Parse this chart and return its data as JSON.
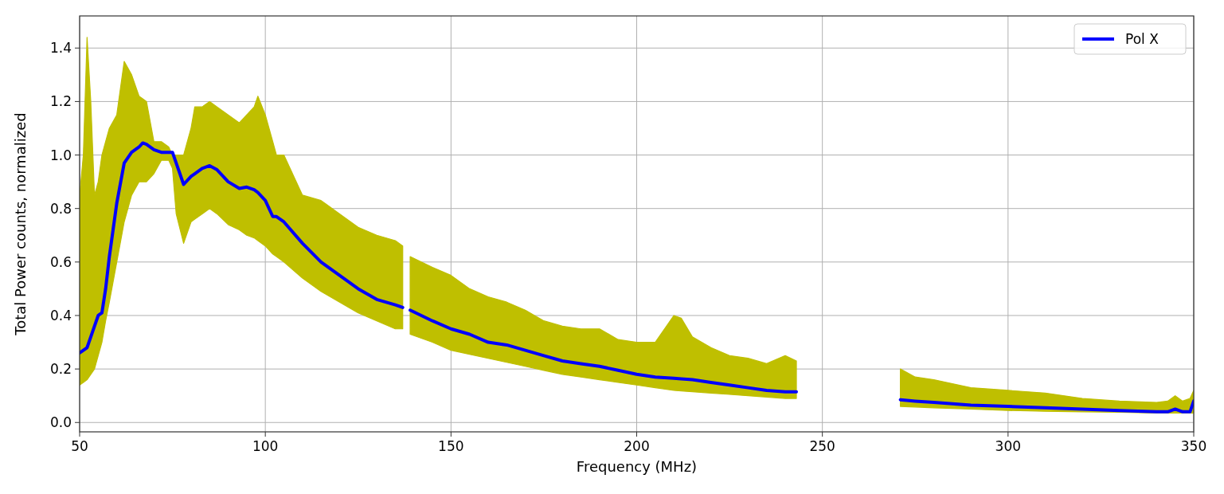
{
  "chart_data": {
    "type": "line",
    "xlabel": "Frequency (MHz)",
    "ylabel": "Total Power counts, normalized",
    "xlim": [
      50,
      350
    ],
    "xticks": [
      50,
      100,
      150,
      200,
      250,
      300,
      350
    ],
    "ylim": [
      -0.035,
      1.52
    ],
    "yticks": [
      {
        "value": 0,
        "label": "0.0"
      },
      0.2,
      0.4,
      0.6,
      0.8,
      {
        "value": 1,
        "label": "1.0"
      },
      1.2,
      1.4
    ],
    "grid": true,
    "legend": "top right",
    "x": [
      50,
      51,
      52,
      53,
      54,
      55,
      56,
      57,
      58,
      60,
      62,
      64,
      66,
      67,
      68,
      70,
      72,
      74,
      75,
      76,
      78,
      80,
      81,
      83,
      85,
      87,
      90,
      93,
      95,
      97,
      98,
      100,
      102,
      103,
      105,
      110,
      115,
      120,
      125,
      130,
      135,
      137,
      138,
      139,
      145,
      150,
      155,
      160,
      165,
      170,
      175,
      180,
      185,
      190,
      195,
      200,
      205,
      210,
      212,
      215,
      220,
      225,
      230,
      235,
      240,
      243,
      255,
      271,
      275,
      280,
      290,
      300,
      310,
      320,
      330,
      340,
      343,
      345,
      347,
      349,
      350
    ],
    "series": [
      {
        "name": "Pol X",
        "color": "#0000ff",
        "values": [
          0.26,
          0.27,
          0.28,
          0.32,
          0.36,
          0.4,
          0.41,
          0.5,
          0.62,
          0.82,
          0.97,
          1.01,
          1.03,
          1.045,
          1.04,
          1.02,
          1.01,
          1.01,
          1.01,
          0.97,
          0.89,
          0.92,
          0.93,
          0.95,
          0.96,
          0.945,
          0.9,
          0.875,
          0.88,
          0.87,
          0.86,
          0.83,
          0.77,
          0.77,
          0.75,
          0.67,
          0.6,
          0.55,
          0.5,
          0.46,
          0.44,
          0.43,
          null,
          0.42,
          0.38,
          0.35,
          0.33,
          0.3,
          0.29,
          0.27,
          0.25,
          0.23,
          0.22,
          0.21,
          0.195,
          0.18,
          0.17,
          0.165,
          0.163,
          0.16,
          0.15,
          0.14,
          0.13,
          0.12,
          0.115,
          0.115,
          null,
          0.085,
          0.08,
          0.075,
          0.065,
          0.06,
          0.055,
          0.05,
          0.045,
          0.04,
          0.04,
          0.05,
          0.04,
          0.04,
          0.08
        ],
        "lower": [
          0.14,
          0.15,
          0.16,
          0.18,
          0.2,
          0.25,
          0.3,
          0.38,
          0.45,
          0.6,
          0.75,
          0.85,
          0.9,
          0.9,
          0.9,
          0.93,
          0.98,
          0.98,
          0.95,
          0.78,
          0.67,
          0.75,
          0.76,
          0.78,
          0.8,
          0.78,
          0.74,
          0.72,
          0.7,
          0.69,
          0.68,
          0.66,
          0.63,
          0.62,
          0.6,
          0.54,
          0.49,
          0.45,
          0.41,
          0.38,
          0.35,
          0.35,
          null,
          0.33,
          0.3,
          0.27,
          0.255,
          0.24,
          0.225,
          0.21,
          0.195,
          0.18,
          0.17,
          0.16,
          0.15,
          0.14,
          0.13,
          0.12,
          0.118,
          0.115,
          0.11,
          0.105,
          0.1,
          0.095,
          0.09,
          0.09,
          null,
          0.06,
          0.058,
          0.055,
          0.05,
          0.045,
          0.042,
          0.04,
          0.038,
          0.035,
          0.035,
          0.035,
          0.035,
          0.035,
          0.035
        ],
        "upper": [
          0.85,
          1.0,
          1.44,
          1.2,
          0.85,
          0.9,
          1.0,
          1.05,
          1.1,
          1.15,
          1.35,
          1.3,
          1.22,
          1.21,
          1.2,
          1.05,
          1.05,
          1.03,
          1.0,
          1.0,
          1.0,
          1.1,
          1.18,
          1.18,
          1.2,
          1.18,
          1.15,
          1.12,
          1.15,
          1.18,
          1.22,
          1.15,
          1.05,
          1.0,
          1.0,
          0.85,
          0.83,
          0.78,
          0.73,
          0.7,
          0.68,
          0.66,
          null,
          0.62,
          0.58,
          0.55,
          0.5,
          0.47,
          0.45,
          0.42,
          0.38,
          0.36,
          0.35,
          0.35,
          0.31,
          0.3,
          0.3,
          0.4,
          0.39,
          0.32,
          0.28,
          0.25,
          0.24,
          0.22,
          0.25,
          0.23,
          null,
          0.2,
          0.17,
          0.16,
          0.13,
          0.12,
          0.11,
          0.09,
          0.08,
          0.075,
          0.08,
          0.1,
          0.08,
          0.09,
          0.12
        ]
      }
    ]
  }
}
